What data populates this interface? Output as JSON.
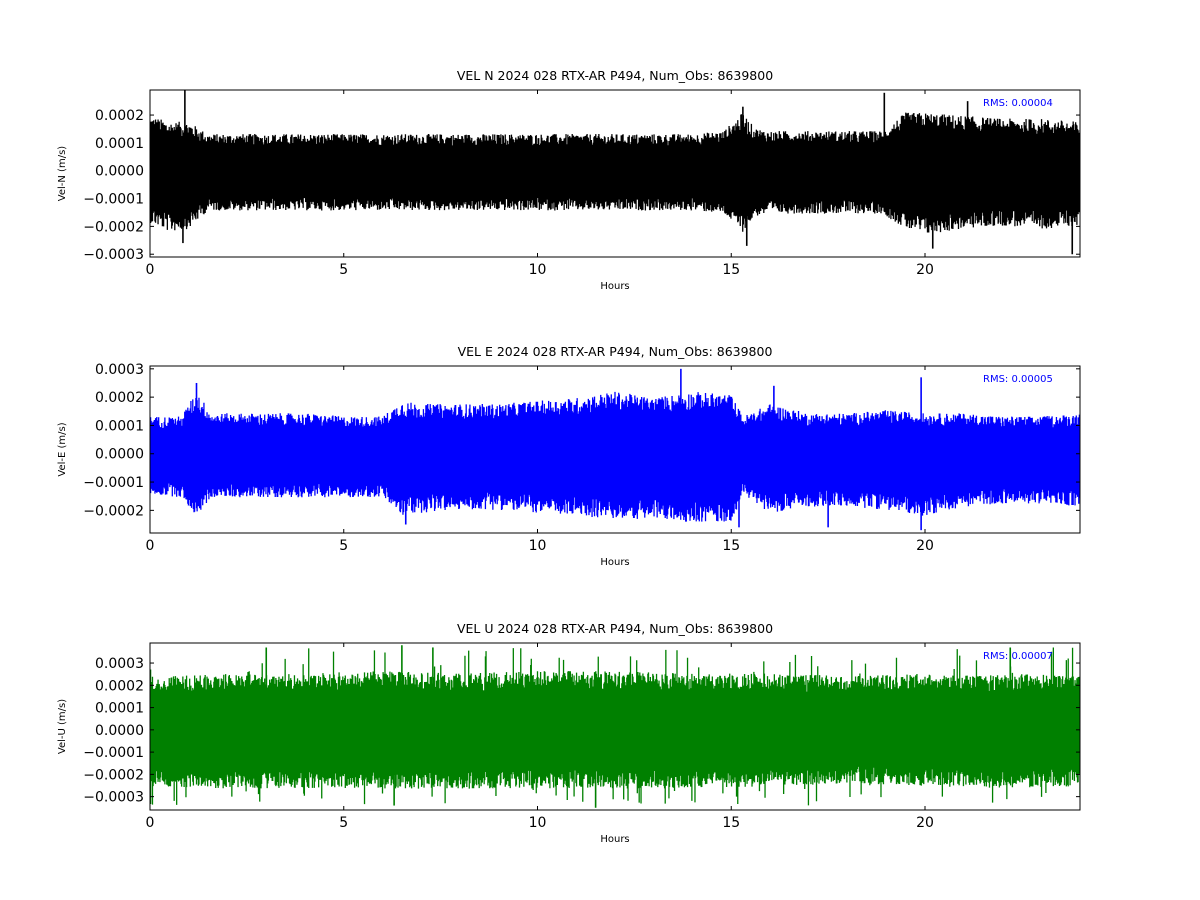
{
  "chart_data": [
    {
      "type": "line",
      "title": "VEL N 2024 028 RTX-AR  P494, Num_Obs: 8639800",
      "xlabel": "Hours",
      "ylabel": "Vel-N (m/s)",
      "xlim": [
        0,
        24
      ],
      "ylim": [
        -0.00031,
        0.00029
      ],
      "x_ticks": [
        0,
        5,
        10,
        15,
        20
      ],
      "x_tick_labels": [
        "0",
        "5",
        "10",
        "15",
        "20"
      ],
      "y_ticks": [
        -0.0003,
        -0.0002,
        -0.0001,
        0.0,
        0.0001,
        0.0002
      ],
      "y_tick_labels": [
        "−0.0003",
        "−0.0002",
        "−0.0001",
        "0.0000",
        "0.0001",
        "0.0002"
      ],
      "color": "#000000",
      "annotation": "RMS:  0.00004",
      "envelope": {
        "hours": [
          0,
          0.5,
          1,
          1.5,
          2,
          3,
          4,
          5,
          6,
          7,
          8,
          9,
          10,
          11,
          12,
          13,
          14,
          14.8,
          15.3,
          15.6,
          16,
          17,
          18,
          18.9,
          19.5,
          20,
          21,
          22,
          23,
          24
        ],
        "upper": [
          0.00018,
          0.00016,
          0.00016,
          0.00012,
          0.00012,
          0.00012,
          0.00012,
          0.00012,
          0.00012,
          0.00012,
          0.00012,
          0.00012,
          0.00012,
          0.00012,
          0.00012,
          0.00012,
          0.00012,
          0.00013,
          0.00019,
          0.00014,
          0.00013,
          0.00013,
          0.00013,
          0.00013,
          0.00019,
          0.00019,
          0.00018,
          0.00017,
          0.00017,
          0.00016
        ],
        "lower": [
          -0.00017,
          -0.0002,
          -0.00019,
          -0.00013,
          -0.00013,
          -0.00013,
          -0.00013,
          -0.00013,
          -0.00013,
          -0.00013,
          -0.00013,
          -0.00013,
          -0.00013,
          -0.00013,
          -0.00013,
          -0.00013,
          -0.00013,
          -0.00014,
          -0.0002,
          -0.00015,
          -0.00014,
          -0.00014,
          -0.00014,
          -0.00014,
          -0.00019,
          -0.00021,
          -0.00019,
          -0.00018,
          -0.00019,
          -0.00018
        ]
      },
      "peaks": [
        {
          "x": 0.9,
          "y": 0.00029
        },
        {
          "x": 0.85,
          "y": -0.00026
        },
        {
          "x": 15.4,
          "y": -0.00027
        },
        {
          "x": 15.3,
          "y": 0.00023
        },
        {
          "x": 18.95,
          "y": 0.00028
        },
        {
          "x": 20.2,
          "y": -0.00028
        },
        {
          "x": 23.8,
          "y": -0.0003
        },
        {
          "x": 21.1,
          "y": 0.00025
        }
      ]
    },
    {
      "type": "line",
      "title": "VEL E 2024 028 RTX-AR  P494, Num_Obs: 8639800",
      "xlabel": "Hours",
      "ylabel": "Vel-E (m/s)",
      "xlim": [
        0,
        24
      ],
      "ylim": [
        -0.00028,
        0.00031
      ],
      "x_ticks": [
        0,
        5,
        10,
        15,
        20
      ],
      "x_tick_labels": [
        "0",
        "5",
        "10",
        "15",
        "20"
      ],
      "y_ticks": [
        -0.0002,
        -0.0001,
        0.0,
        0.0001,
        0.0002,
        0.0003
      ],
      "y_tick_labels": [
        "−0.0002",
        "−0.0001",
        "0.0000",
        "0.0001",
        "0.0002",
        "0.0003"
      ],
      "color": "#0000ff",
      "annotation": "RMS:  0.00005",
      "envelope": {
        "hours": [
          0,
          0.8,
          1.2,
          1.6,
          2,
          3,
          4,
          5,
          6,
          6.5,
          7,
          8,
          9,
          10,
          11,
          12,
          13,
          14,
          15,
          15.3,
          16,
          17,
          18,
          19,
          20,
          21,
          22,
          23,
          24
        ],
        "upper": [
          0.00012,
          0.00012,
          0.0002,
          0.00013,
          0.00013,
          0.00013,
          0.00013,
          0.00012,
          0.00012,
          0.00017,
          0.00016,
          0.00016,
          0.00016,
          0.00017,
          0.00018,
          0.0002,
          0.00018,
          0.0002,
          0.00019,
          0.00012,
          0.00016,
          0.00013,
          0.00013,
          0.00014,
          0.00013,
          0.00013,
          0.00012,
          0.00012,
          0.00013
        ],
        "lower": [
          -0.00013,
          -0.00014,
          -0.0002,
          -0.00014,
          -0.00014,
          -0.00014,
          -0.00014,
          -0.00014,
          -0.00014,
          -0.0002,
          -0.00019,
          -0.00018,
          -0.00018,
          -0.00019,
          -0.0002,
          -0.00021,
          -0.00021,
          -0.00022,
          -0.00022,
          -0.00013,
          -0.00019,
          -0.00017,
          -0.00017,
          -0.00018,
          -0.0002,
          -0.00017,
          -0.00016,
          -0.00016,
          -0.00017
        ]
      },
      "peaks": [
        {
          "x": 1.2,
          "y": 0.00025
        },
        {
          "x": 13.7,
          "y": 0.0003
        },
        {
          "x": 19.9,
          "y": 0.00027
        },
        {
          "x": 19.9,
          "y": -0.00027
        },
        {
          "x": 17.5,
          "y": -0.00026
        },
        {
          "x": 6.6,
          "y": -0.00025
        },
        {
          "x": 16.1,
          "y": 0.00024
        },
        {
          "x": 15.2,
          "y": -0.00026
        }
      ]
    },
    {
      "type": "line",
      "title": "VEL U 2024 028 RTX-AR  P494, Num_Obs: 8639800",
      "xlabel": "Hours",
      "ylabel": "Vel-U (m/s)",
      "xlim": [
        0,
        24
      ],
      "ylim": [
        -0.00036,
        0.00039
      ],
      "x_ticks": [
        0,
        5,
        10,
        15,
        20
      ],
      "x_tick_labels": [
        "0",
        "5",
        "10",
        "15",
        "20"
      ],
      "y_ticks": [
        -0.0003,
        -0.0002,
        -0.0001,
        0.0,
        0.0001,
        0.0002,
        0.0003
      ],
      "y_tick_labels": [
        "−0.0003",
        "−0.0002",
        "−0.0001",
        "0.0000",
        "0.0001",
        "0.0002",
        "0.0003"
      ],
      "color": "#008000",
      "annotation": "RMS:  0.00007",
      "envelope": {
        "hours": [
          0,
          2,
          4,
          6,
          8,
          10,
          12,
          14,
          16,
          18,
          20,
          22,
          24
        ],
        "upper": [
          0.00022,
          0.00023,
          0.00023,
          0.00024,
          0.00023,
          0.00024,
          0.00024,
          0.00023,
          0.00023,
          0.00022,
          0.00023,
          0.00023,
          0.00022
        ],
        "lower": [
          -0.00023,
          -0.00024,
          -0.00024,
          -0.00024,
          -0.00024,
          -0.00024,
          -0.00024,
          -0.00024,
          -0.00023,
          -0.00022,
          -0.00023,
          -0.00024,
          -0.00023
        ],
        "spike_max": 0.00037,
        "spike_min": -0.00034
      },
      "peaks": [
        {
          "x": 3.0,
          "y": 0.00037
        },
        {
          "x": 6.5,
          "y": 0.00038
        },
        {
          "x": 7.3,
          "y": 0.00037
        },
        {
          "x": 11.5,
          "y": -0.00035
        },
        {
          "x": 22.2,
          "y": 0.00037
        },
        {
          "x": 6.3,
          "y": -0.00034
        }
      ]
    }
  ]
}
